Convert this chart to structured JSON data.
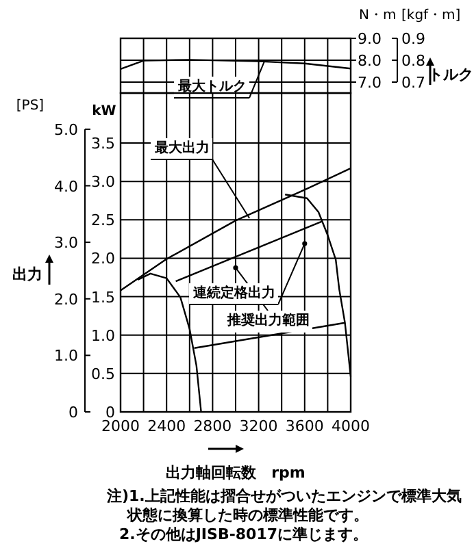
{
  "chart_data": [
    {
      "type": "line",
      "xlim": [
        2000,
        4000
      ],
      "xticks": [
        {
          "value": 2000,
          "label": null
        },
        {
          "value": 2200,
          "label": null
        },
        {
          "value": 2400,
          "label": null
        },
        {
          "value": 2600,
          "label": null
        },
        {
          "value": 2800,
          "label": null
        },
        {
          "value": 3000,
          "label": null
        },
        {
          "value": 3200,
          "label": null
        },
        {
          "value": 3400,
          "label": null
        },
        {
          "value": 3600,
          "label": null
        },
        {
          "value": 3800,
          "label": null
        },
        {
          "value": 4000,
          "label": null
        }
      ],
      "ylim": [
        6.5,
        9.0
      ],
      "yticks": [
        {
          "value": 7,
          "label": "7.0"
        },
        {
          "value": 8,
          "label": "8.0"
        },
        {
          "value": 9,
          "label": "9.0"
        }
      ],
      "y2lim": [
        0.65,
        0.9
      ],
      "y2ticks": [
        {
          "value": 0.7,
          "label": "0.7"
        },
        {
          "value": 0.8,
          "label": "0.8"
        },
        {
          "value": 0.9,
          "label": "0.9"
        }
      ],
      "ylabel": "N・m",
      "y2label": "[kgf・m]",
      "grid": true,
      "tick_labels": "y",
      "series": [
        {
          "color": "#000000",
          "x": [
            2000,
            2200,
            2600,
            3200,
            3600,
            4000
          ],
          "values": [
            7.6,
            7.98,
            8.02,
            7.95,
            7.85,
            7.62
          ]
        }
      ],
      "annotations": [
        "トルク",
        {
          "text": "最大トルク",
          "x": 3250,
          "y": 7.95
        }
      ]
    },
    {
      "type": "line",
      "xlim": [
        2000,
        4000
      ],
      "xticks": [
        {
          "value": 2000,
          "label": "2000"
        },
        {
          "value": 2200,
          "label": null
        },
        {
          "value": 2400,
          "label": "2400"
        },
        {
          "value": 2600,
          "label": null
        },
        {
          "value": 2800,
          "label": "2800"
        },
        {
          "value": 3000,
          "label": null
        },
        {
          "value": 3200,
          "label": "3200"
        },
        {
          "value": 3400,
          "label": null
        },
        {
          "value": 3600,
          "label": "3600"
        },
        {
          "value": 3800,
          "label": null
        },
        {
          "value": 4000,
          "label": "4000"
        }
      ],
      "ylim": [
        0,
        4.15
      ],
      "yticks": [
        {
          "value": 0,
          "label": "0"
        },
        {
          "value": 0.5,
          "label": "0.5"
        },
        {
          "value": 1,
          "label": "1.0"
        },
        {
          "value": 1.5,
          "label": "1.5"
        },
        {
          "value": 2,
          "label": "2.0"
        },
        {
          "value": 2.5,
          "label": "2.5"
        },
        {
          "value": 3,
          "label": "3.0"
        },
        {
          "value": 3.5,
          "label": "3.5"
        }
      ],
      "y2lim": [
        0,
        5.64
      ],
      "y2ticks": [
        {
          "value": 0,
          "label": "0"
        },
        {
          "value": 1,
          "label": "1.0"
        },
        {
          "value": 2,
          "label": "2.0"
        },
        {
          "value": 3,
          "label": "3.0"
        },
        {
          "value": 4,
          "label": "4.0"
        },
        {
          "value": 5,
          "label": "5.0"
        }
      ],
      "ylabel": "kW",
      "y2label": "[PS]",
      "xlabel": "出力軸回転数　rpm",
      "grid": true,
      "series": [
        {
          "color": "#000000",
          "x": [
            2000,
            2400,
            3000,
            3600,
            4000
          ],
          "values": [
            1.58,
            1.99,
            2.49,
            2.89,
            3.17
          ]
        },
        {
          "color": "#000000",
          "x": [
            2480,
            3750
          ],
          "values": [
            1.7,
            2.48
          ]
        },
        {
          "color": "#000000",
          "x": [
            3430,
            3620,
            3720,
            3800,
            3870,
            3900,
            3950,
            4000
          ],
          "values": [
            2.83,
            2.78,
            2.6,
            2.3,
            1.98,
            1.6,
            1.16,
            0.46
          ]
        },
        {
          "color": "#000000",
          "x": [
            2150,
            2260,
            2400,
            2520,
            2600,
            2660,
            2700
          ],
          "values": [
            1.72,
            1.8,
            1.74,
            1.49,
            1.08,
            0.6,
            0
          ]
        },
        {
          "color": "#000000",
          "x": [
            2640,
            3950
          ],
          "values": [
            0.83,
            1.16
          ]
        }
      ],
      "annotations": [
        "出力",
        {
          "text": "最大出力",
          "x": 3120,
          "y": 2.52
        },
        {
          "text": "連続定格出力",
          "x": 3600,
          "y": 2.19
        },
        {
          "text": "推奨出力範囲",
          "x": 3000,
          "y": 1.875
        },
        "注)1.上記性能は摺合せがついたエンジンで標準大気",
        "状態に換算した時の標準性能です。",
        "2.その他はJISB-8017に準じます。"
      ]
    }
  ]
}
